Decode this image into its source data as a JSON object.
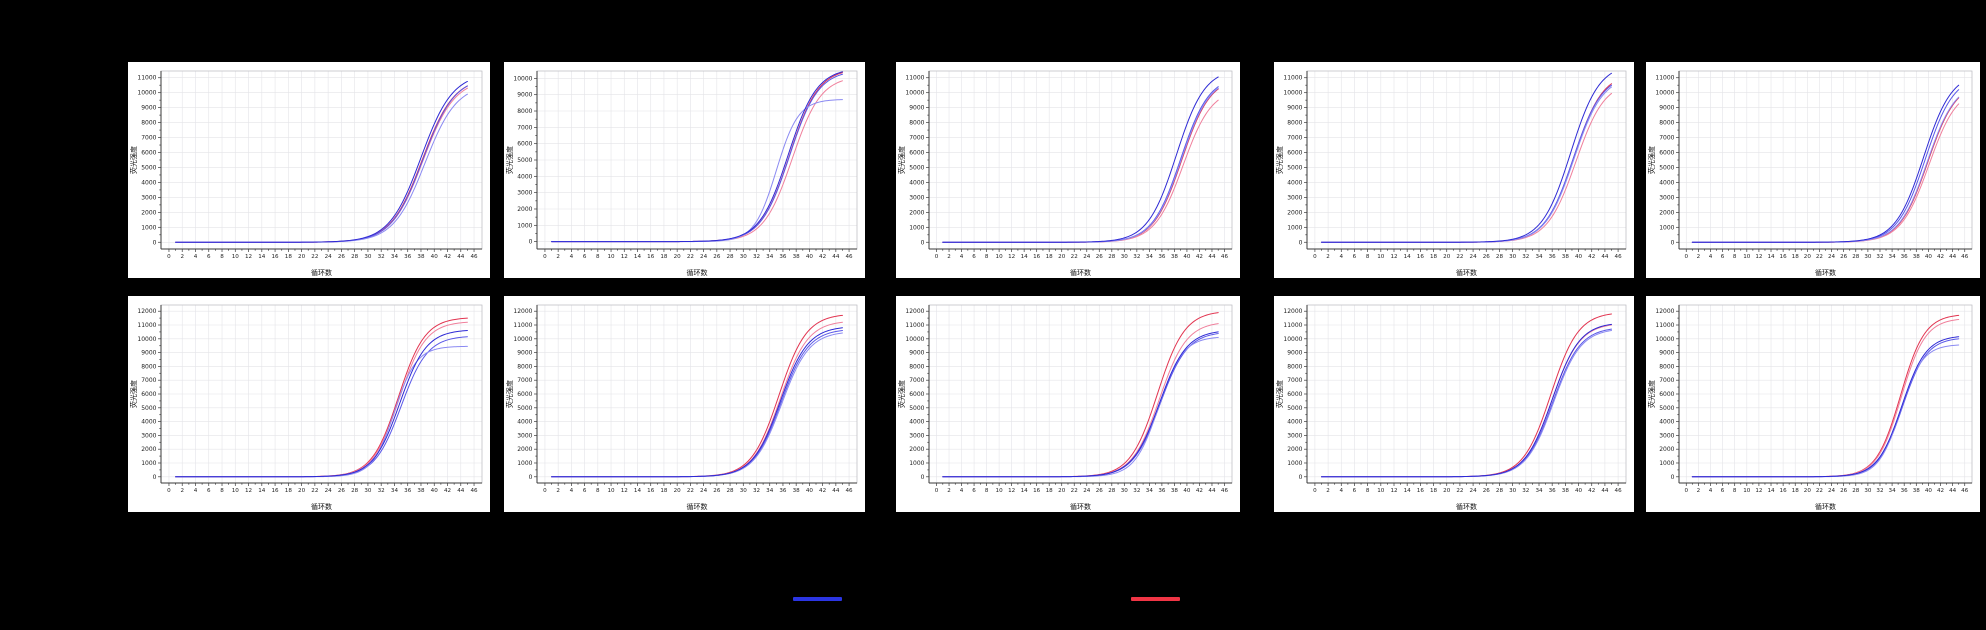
{
  "page": {
    "background": "#000000",
    "panel_background": "#ffffff",
    "grid_color": "#e4e4e8",
    "axis_color": "#3a3a3a",
    "tick_label_color": "#222222"
  },
  "legend": {
    "items": [
      {
        "name": "blue-series",
        "color": "#2b35e3"
      },
      {
        "name": "red-series",
        "color": "#f03545"
      }
    ]
  },
  "chart_data": [
    {
      "id": "r1c1",
      "row": 1,
      "col": 1,
      "type": "line",
      "model": "logistic amplification curve",
      "xlabel": "循环数",
      "ylabel": "荧光强度",
      "xlim": [
        0,
        46
      ],
      "x_tick_step": 2,
      "y_tick_step": 1000,
      "y_max": 11000,
      "k": 0.42,
      "series": [
        {
          "name": "red-1",
          "color": "#e23450",
          "x0": 38.2,
          "end_value": 10450
        },
        {
          "name": "red-2",
          "color": "#f0809c",
          "x0": 38.3,
          "end_value": 10300
        },
        {
          "name": "blue-2",
          "color": "#5a58e8",
          "x0": 38.3,
          "end_value": 10450
        },
        {
          "name": "blue-3",
          "color": "#8b8af2",
          "x0": 38.6,
          "end_value": 9900
        },
        {
          "name": "blue-1",
          "color": "#2e2ad5",
          "x0": 38.0,
          "end_value": 10750
        }
      ]
    },
    {
      "id": "r1c2",
      "row": 1,
      "col": 2,
      "type": "line",
      "model": "logistic amplification curve",
      "xlabel": "循环数",
      "ylabel": "荧光强度",
      "xlim": [
        0,
        46
      ],
      "x_tick_step": 2,
      "y_tick_step": 1000,
      "y_max": 10000,
      "k": 0.46,
      "series": [
        {
          "name": "red-1",
          "color": "#e23450",
          "x0": 37.0,
          "end_value": 10350
        },
        {
          "name": "red-2",
          "color": "#f0809c",
          "x0": 37.4,
          "end_value": 9850
        },
        {
          "name": "blue-2",
          "color": "#5a58e8",
          "x0": 37.0,
          "end_value": 10250
        },
        {
          "name": "blue-3",
          "color": "#8b8af2",
          "x0": 35.0,
          "k": 0.6,
          "end_value": 8700
        },
        {
          "name": "blue-1",
          "color": "#2e2ad5",
          "x0": 36.8,
          "end_value": 10400
        }
      ]
    },
    {
      "id": "r1c3",
      "row": 1,
      "col": 3,
      "type": "line",
      "model": "logistic amplification curve",
      "xlabel": "循环数",
      "ylabel": "荧光强度",
      "xlim": [
        0,
        46
      ],
      "x_tick_step": 2,
      "y_tick_step": 1000,
      "y_max": 11000,
      "k": 0.44,
      "series": [
        {
          "name": "red-1",
          "color": "#e23450",
          "x0": 39.2,
          "end_value": 10250
        },
        {
          "name": "red-2",
          "color": "#f0809c",
          "x0": 39.4,
          "end_value": 9500
        },
        {
          "name": "blue-2",
          "color": "#5a58e8",
          "x0": 39.0,
          "end_value": 10400
        },
        {
          "name": "blue-3",
          "color": "#8b8af2",
          "x0": 39.1,
          "end_value": 10300
        },
        {
          "name": "blue-1",
          "color": "#2e2ad5",
          "x0": 38.3,
          "end_value": 11050
        }
      ]
    },
    {
      "id": "r1c4",
      "row": 1,
      "col": 4,
      "type": "line",
      "model": "logistic amplification curve",
      "xlabel": "循环数",
      "ylabel": "荧光强度",
      "xlim": [
        0,
        46
      ],
      "x_tick_step": 2,
      "y_tick_step": 1000,
      "y_max": 11000,
      "k": 0.46,
      "series": [
        {
          "name": "red-1",
          "color": "#e23450",
          "x0": 39.3,
          "end_value": 10600
        },
        {
          "name": "red-2",
          "color": "#f0809c",
          "x0": 39.6,
          "end_value": 9950
        },
        {
          "name": "blue-2",
          "color": "#5a58e8",
          "x0": 39.2,
          "end_value": 10500
        },
        {
          "name": "blue-3",
          "color": "#8b8af2",
          "x0": 39.3,
          "end_value": 10380
        },
        {
          "name": "blue-1",
          "color": "#2e2ad5",
          "x0": 38.8,
          "end_value": 11300
        }
      ]
    },
    {
      "id": "r1c5",
      "row": 1,
      "col": 5,
      "type": "line",
      "model": "logistic amplification curve",
      "xlabel": "循环数",
      "ylabel": "荧光强度",
      "xlim": [
        0,
        46
      ],
      "x_tick_step": 2,
      "y_tick_step": 1000,
      "y_max": 11000,
      "k": 0.43,
      "series": [
        {
          "name": "red-1",
          "color": "#e23450",
          "x0": 39.9,
          "end_value": 9650
        },
        {
          "name": "red-2",
          "color": "#f0809c",
          "x0": 40.1,
          "end_value": 9250
        },
        {
          "name": "blue-2",
          "color": "#5a58e8",
          "x0": 39.5,
          "end_value": 10200
        },
        {
          "name": "blue-3",
          "color": "#8b8af2",
          "x0": 39.8,
          "end_value": 9700
        },
        {
          "name": "blue-1",
          "color": "#2e2ad5",
          "x0": 39.2,
          "end_value": 10500
        }
      ]
    },
    {
      "id": "r2c1",
      "row": 2,
      "col": 1,
      "type": "line",
      "model": "logistic amplification curve",
      "xlabel": "循环数",
      "ylabel": "荧光强度",
      "xlim": [
        0,
        46
      ],
      "x_tick_step": 2,
      "y_tick_step": 1000,
      "y_max": 12000,
      "k": 0.5,
      "series": [
        {
          "name": "red-1",
          "color": "#e23450",
          "x0": 34.6,
          "end_value": 11500
        },
        {
          "name": "red-2",
          "color": "#f0809c",
          "x0": 34.7,
          "end_value": 11200
        },
        {
          "name": "blue-2",
          "color": "#5a58e8",
          "x0": 35.0,
          "end_value": 10150
        },
        {
          "name": "blue-3",
          "color": "#8b8af2",
          "x0": 34.0,
          "k": 0.6,
          "end_value": 9450
        },
        {
          "name": "blue-1",
          "color": "#2e2ad5",
          "x0": 34.8,
          "end_value": 10600
        }
      ]
    },
    {
      "id": "r2c2",
      "row": 2,
      "col": 2,
      "type": "line",
      "model": "logistic amplification curve",
      "xlabel": "循环数",
      "ylabel": "荧光强度",
      "xlim": [
        0,
        46
      ],
      "x_tick_step": 2,
      "y_tick_step": 1000,
      "y_max": 12000,
      "k": 0.48,
      "series": [
        {
          "name": "red-1",
          "color": "#e23450",
          "x0": 35.4,
          "end_value": 11700
        },
        {
          "name": "red-2",
          "color": "#f0809c",
          "x0": 35.6,
          "end_value": 11200
        },
        {
          "name": "blue-2",
          "color": "#5a58e8",
          "x0": 35.7,
          "end_value": 10600
        },
        {
          "name": "blue-3",
          "color": "#8b8af2",
          "x0": 35.8,
          "end_value": 10420
        },
        {
          "name": "blue-1",
          "color": "#2e2ad5",
          "x0": 35.6,
          "end_value": 10800
        }
      ]
    },
    {
      "id": "r2c3",
      "row": 2,
      "col": 3,
      "type": "line",
      "model": "logistic amplification curve",
      "xlabel": "循环数",
      "ylabel": "荧光强度",
      "xlim": [
        0,
        46
      ],
      "x_tick_step": 2,
      "y_tick_step": 1000,
      "y_max": 12000,
      "k": 0.46,
      "series": [
        {
          "name": "red-1",
          "color": "#e23450",
          "x0": 35.3,
          "end_value": 11900
        },
        {
          "name": "red-2",
          "color": "#f0809c",
          "x0": 35.6,
          "end_value": 11100
        },
        {
          "name": "blue-2",
          "color": "#5a58e8",
          "x0": 35.7,
          "end_value": 10380
        },
        {
          "name": "blue-3",
          "color": "#8b8af2",
          "x0": 35.5,
          "k": 0.52,
          "end_value": 10100
        },
        {
          "name": "blue-1",
          "color": "#2e2ad5",
          "x0": 35.6,
          "end_value": 10500
        }
      ]
    },
    {
      "id": "r2c4",
      "row": 2,
      "col": 4,
      "type": "line",
      "model": "logistic amplification curve",
      "xlabel": "循环数",
      "ylabel": "荧光强度",
      "xlim": [
        0,
        46
      ],
      "x_tick_step": 2,
      "y_tick_step": 1000,
      "y_max": 12000,
      "k": 0.48,
      "series": [
        {
          "name": "red-1",
          "color": "#e23450",
          "x0": 35.8,
          "end_value": 11800
        },
        {
          "name": "red-2",
          "color": "#f0809c",
          "x0": 36.0,
          "end_value": 11000
        },
        {
          "name": "blue-2",
          "color": "#5a58e8",
          "x0": 36.1,
          "end_value": 10700
        },
        {
          "name": "blue-3",
          "color": "#8b8af2",
          "x0": 36.2,
          "end_value": 10600
        },
        {
          "name": "blue-1",
          "color": "#2e2ad5",
          "x0": 36.0,
          "end_value": 11050
        }
      ]
    },
    {
      "id": "r2c5",
      "row": 2,
      "col": 5,
      "type": "line",
      "model": "logistic amplification curve",
      "xlabel": "循环数",
      "ylabel": "荧光强度",
      "xlim": [
        0,
        46
      ],
      "x_tick_step": 2,
      "y_tick_step": 1000,
      "y_max": 12000,
      "k": 0.5,
      "series": [
        {
          "name": "red-1",
          "color": "#e23450",
          "x0": 35.4,
          "end_value": 11700
        },
        {
          "name": "red-2",
          "color": "#f0809c",
          "x0": 35.5,
          "end_value": 11400
        },
        {
          "name": "blue-2",
          "color": "#5a58e8",
          "x0": 35.7,
          "end_value": 10000
        },
        {
          "name": "blue-3",
          "color": "#8b8af2",
          "x0": 35.4,
          "k": 0.55,
          "end_value": 9550
        },
        {
          "name": "blue-1",
          "color": "#2e2ad5",
          "x0": 35.6,
          "end_value": 10150
        }
      ]
    }
  ]
}
